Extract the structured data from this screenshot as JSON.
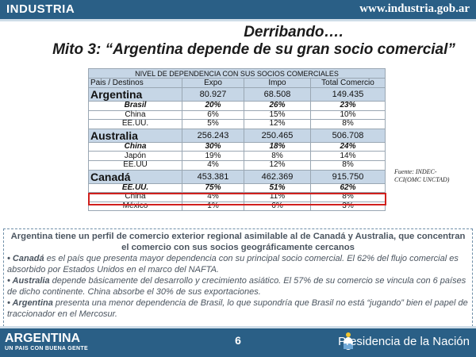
{
  "header": {
    "brand": "INDUSTRIA",
    "url": "www.industria.gob.ar"
  },
  "title": {
    "line1": "Derribando….",
    "line2": "Mito 3: “Argentina depende de su gran socio comercial”"
  },
  "table": {
    "caption": "NIVEL DE DEPENDENCIA CON SUS SOCIOS COMERCIALES",
    "headers": [
      "Pais / Destinos",
      "Expo",
      "Impo",
      "Total Comercio"
    ],
    "rows": [
      [
        "Argentina",
        "80.927",
        "68.508",
        "149.435"
      ],
      [
        "Brasil",
        "20%",
        "26%",
        "23%"
      ],
      [
        "China",
        "6%",
        "15%",
        "10%"
      ],
      [
        "EE.UU.",
        "5%",
        "12%",
        "8%"
      ],
      [
        "Australia",
        "256.243",
        "250.465",
        "506.708"
      ],
      [
        "China",
        "30%",
        "18%",
        "24%"
      ],
      [
        "Japón",
        "19%",
        "8%",
        "14%"
      ],
      [
        "EE.UU",
        "4%",
        "12%",
        "8%"
      ],
      [
        "Canadá",
        "453.381",
        "462.369",
        "915.750"
      ],
      [
        "EE.UU.",
        "75%",
        "51%",
        "62%"
      ],
      [
        "China",
        "4%",
        "11%",
        "8%"
      ],
      [
        "México",
        "1%",
        "6%",
        "3%"
      ]
    ]
  },
  "source": "Fuente: INDEC-CCI(OMC UNCTAD)",
  "notes": {
    "heading": "Argentina tiene un perfil de comercio exterior regional asimilable  al de Canadá y Australia, que concentran el comercio con sus socios geográficamente cercanos",
    "items": [
      {
        "bold": "• Canadá",
        "text": " es el país que presenta mayor dependencia con su principal socio comercial. El 62% del flujo comercial es absorbido por Estados Unidos en el marco del NAFTA."
      },
      {
        "bold": "• Australia",
        "text": " depende básicamente del  desarrollo y crecimiento asiático. El 57% de su comercio se vincula con 6 países de dicho continente. China absorbe el 30% de sus exportaciones."
      },
      {
        "bold": "• Argentina",
        "text": " presenta una menor dependencia de Brasil, lo que supondría que Brasil no está “jugando” bien el papel de traccionador en el Mercosur."
      }
    ]
  },
  "footer": {
    "logo_big": "ARGENTINA",
    "logo_small": "UN PAIS CON BUENA GENTE",
    "page": "6",
    "presidency": "Presidencia de la Nación"
  }
}
